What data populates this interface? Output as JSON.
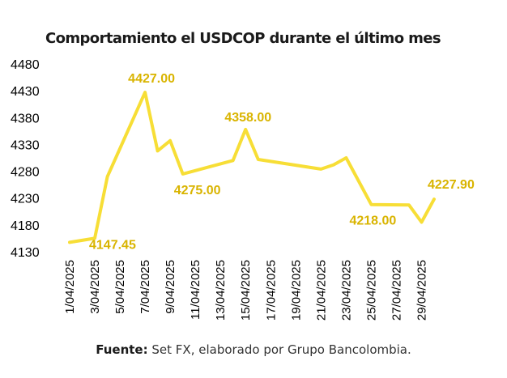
{
  "chart_data": {
    "type": "line",
    "title": "Comportamiento el USDCOP durante el último mes",
    "xlabel": "",
    "ylabel": "",
    "ylim": [
      4130,
      4480
    ],
    "yticks": [
      4480,
      4430,
      4380,
      4330,
      4280,
      4230,
      4180,
      4130
    ],
    "grid": false,
    "legend": "none",
    "color": "#f7de36",
    "label_color": "#d9b400",
    "x": [
      "1/04/2025",
      "2/04/2025",
      "3/04/2025",
      "4/04/2025",
      "5/04/2025",
      "6/04/2025",
      "7/04/2025",
      "8/04/2025",
      "9/04/2025",
      "10/04/2025",
      "11/04/2025",
      "12/04/2025",
      "13/04/2025",
      "14/04/2025",
      "15/04/2025",
      "16/04/2025",
      "17/04/2025",
      "18/04/2025",
      "19/04/2025",
      "20/04/2025",
      "21/04/2025",
      "22/04/2025",
      "23/04/2025",
      "24/04/2025",
      "25/04/2025",
      "26/04/2025",
      "27/04/2025",
      "28/04/2025",
      "29/04/2025",
      "30/04/2025"
    ],
    "xticks": [
      "1/04/2025",
      "3/04/2025",
      "5/04/2025",
      "7/04/2025",
      "9/04/2025",
      "11/04/2025",
      "13/04/2025",
      "15/04/2025",
      "17/04/2025",
      "19/04/2025",
      "21/04/2025",
      "23/04/2025",
      "25/04/2025",
      "27/04/2025",
      "29/04/2025"
    ],
    "points": [
      {
        "x": "1/04/2025",
        "y": 4147.45
      },
      {
        "x": "3/04/2025",
        "y": 4155
      },
      {
        "x": "4/04/2025",
        "y": 4270
      },
      {
        "x": "7/04/2025",
        "y": 4427.0
      },
      {
        "x": "8/04/2025",
        "y": 4318
      },
      {
        "x": "9/04/2025",
        "y": 4337
      },
      {
        "x": "10/04/2025",
        "y": 4275.0
      },
      {
        "x": "14/04/2025",
        "y": 4300
      },
      {
        "x": "15/04/2025",
        "y": 4358.0
      },
      {
        "x": "16/04/2025",
        "y": 4302
      },
      {
        "x": "21/04/2025",
        "y": 4284
      },
      {
        "x": "22/04/2025",
        "y": 4292
      },
      {
        "x": "23/04/2025",
        "y": 4305
      },
      {
        "x": "25/04/2025",
        "y": 4218.0
      },
      {
        "x": "28/04/2025",
        "y": 4217
      },
      {
        "x": "29/04/2025",
        "y": 4185
      },
      {
        "x": "30/04/2025",
        "y": 4227.9
      }
    ],
    "annotations": [
      {
        "x": "1/04/2025",
        "text": "4147.45"
      },
      {
        "x": "7/04/2025",
        "text": "4427.00"
      },
      {
        "x": "10/04/2025",
        "text": "4275.00"
      },
      {
        "x": "15/04/2025",
        "text": "4358.00"
      },
      {
        "x": "25/04/2025",
        "text": "4218.00"
      },
      {
        "x": "30/04/2025",
        "text": "4227.90"
      }
    ]
  },
  "source": {
    "label": "Fuente:",
    "text": "Set FX, elaborado por Grupo Bancolombia."
  }
}
